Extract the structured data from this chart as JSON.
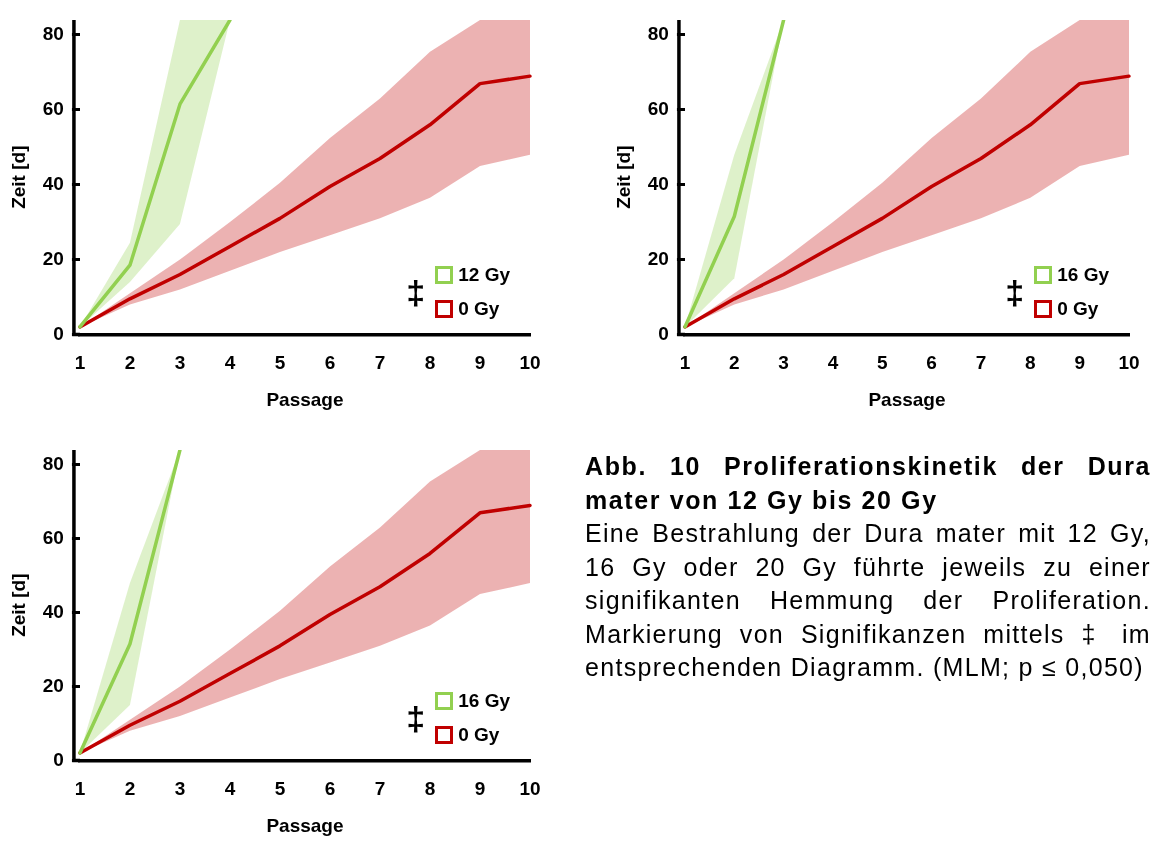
{
  "chart_data": [
    {
      "type": "line",
      "xlabel": "Passage",
      "ylabel": "Zeit [d]",
      "x": [
        1,
        2,
        3,
        4,
        5,
        6,
        7,
        8,
        9,
        10
      ],
      "xlim": [
        1,
        10
      ],
      "xticks": [
        1,
        2,
        3,
        4,
        5,
        6,
        7,
        8,
        9,
        10
      ],
      "ylim": [
        0,
        84
      ],
      "yticks": [
        0,
        20,
        40,
        60,
        80
      ],
      "legend": "bottom right",
      "annotations": [
        "‡"
      ],
      "series": [
        {
          "name": "12 Gy",
          "color": "#92d050",
          "x": [
            1,
            2,
            3,
            4
          ],
          "values": [
            2,
            18.5,
            61.5,
            84
          ],
          "lower": [
            2,
            14,
            29.5,
            84
          ],
          "upper": [
            2,
            24.5,
            84,
            84
          ]
        },
        {
          "name": "0 Gy",
          "color": "#c00000",
          "values": [
            2,
            9.5,
            16,
            23.5,
            31,
            39.5,
            47,
            56,
            67,
            69
          ],
          "lower": [
            2,
            8,
            12,
            17,
            22,
            26.5,
            31,
            36.5,
            45,
            48
          ],
          "upper": [
            2,
            11,
            20,
            30,
            40.5,
            52.5,
            63,
            75.5,
            84,
            84
          ]
        }
      ]
    },
    {
      "type": "line",
      "xlabel": "Passage",
      "ylabel": "Zeit [d]",
      "x": [
        1,
        2,
        3,
        4,
        5,
        6,
        7,
        8,
        9,
        10
      ],
      "xlim": [
        1,
        10
      ],
      "xticks": [
        1,
        2,
        3,
        4,
        5,
        6,
        7,
        8,
        9,
        10
      ],
      "ylim": [
        0,
        84
      ],
      "yticks": [
        0,
        20,
        40,
        60,
        80
      ],
      "legend": "bottom right",
      "annotations": [
        "‡"
      ],
      "series": [
        {
          "name": "16 Gy",
          "color": "#92d050",
          "x": [
            1,
            2,
            3
          ],
          "values": [
            2,
            31.5,
            84
          ],
          "lower": [
            2,
            15,
            84
          ],
          "upper": [
            2,
            48,
            84
          ]
        },
        {
          "name": "0 Gy",
          "color": "#c00000",
          "values": [
            2,
            9.5,
            16,
            23.5,
            31,
            39.5,
            47,
            56,
            67,
            69
          ],
          "lower": [
            2,
            8,
            12,
            17,
            22,
            26.5,
            31,
            36.5,
            45,
            48
          ],
          "upper": [
            2,
            11,
            20,
            30,
            40.5,
            52.5,
            63,
            75.5,
            84,
            84
          ]
        }
      ]
    },
    {
      "type": "line",
      "xlabel": "Passage",
      "ylabel": "Zeit [d]",
      "x": [
        1,
        2,
        3,
        4,
        5,
        6,
        7,
        8,
        9,
        10
      ],
      "xlim": [
        1,
        10
      ],
      "xticks": [
        1,
        2,
        3,
        4,
        5,
        6,
        7,
        8,
        9,
        10
      ],
      "ylim": [
        0,
        84
      ],
      "yticks": [
        0,
        20,
        40,
        60,
        80
      ],
      "legend": "bottom right",
      "annotations": [
        "‡"
      ],
      "series": [
        {
          "name": "16 Gy",
          "color": "#92d050",
          "x": [
            1,
            2,
            3
          ],
          "values": [
            2,
            31.5,
            84
          ],
          "lower": [
            2,
            15,
            84
          ],
          "upper": [
            2,
            48,
            84
          ]
        },
        {
          "name": "0 Gy",
          "color": "#c00000",
          "values": [
            2,
            9.5,
            16,
            23.5,
            31,
            39.5,
            47,
            56,
            67,
            69
          ],
          "lower": [
            2,
            8,
            12,
            17,
            22,
            26.5,
            31,
            36.5,
            45,
            48
          ],
          "upper": [
            2,
            11,
            20,
            30,
            40.5,
            52.5,
            63,
            75.5,
            84,
            84
          ]
        }
      ]
    },
    {
      "type": "other",
      "title": "Abb. 10 Proliferationskinetik der Dura mater von 12 Gy bis 20 Gy",
      "annotations": [
        "Eine Bestrahlung der Dura mater mit 12 Gy, 16 Gy oder 20 Gy führte jeweils zu einer signifikanten Hemmung der Proliferation. Markierung von Signifikanzen mittels ‡ im entsprechenden Diagramm. (MLM; p ≤ 0,050)"
      ]
    }
  ]
}
